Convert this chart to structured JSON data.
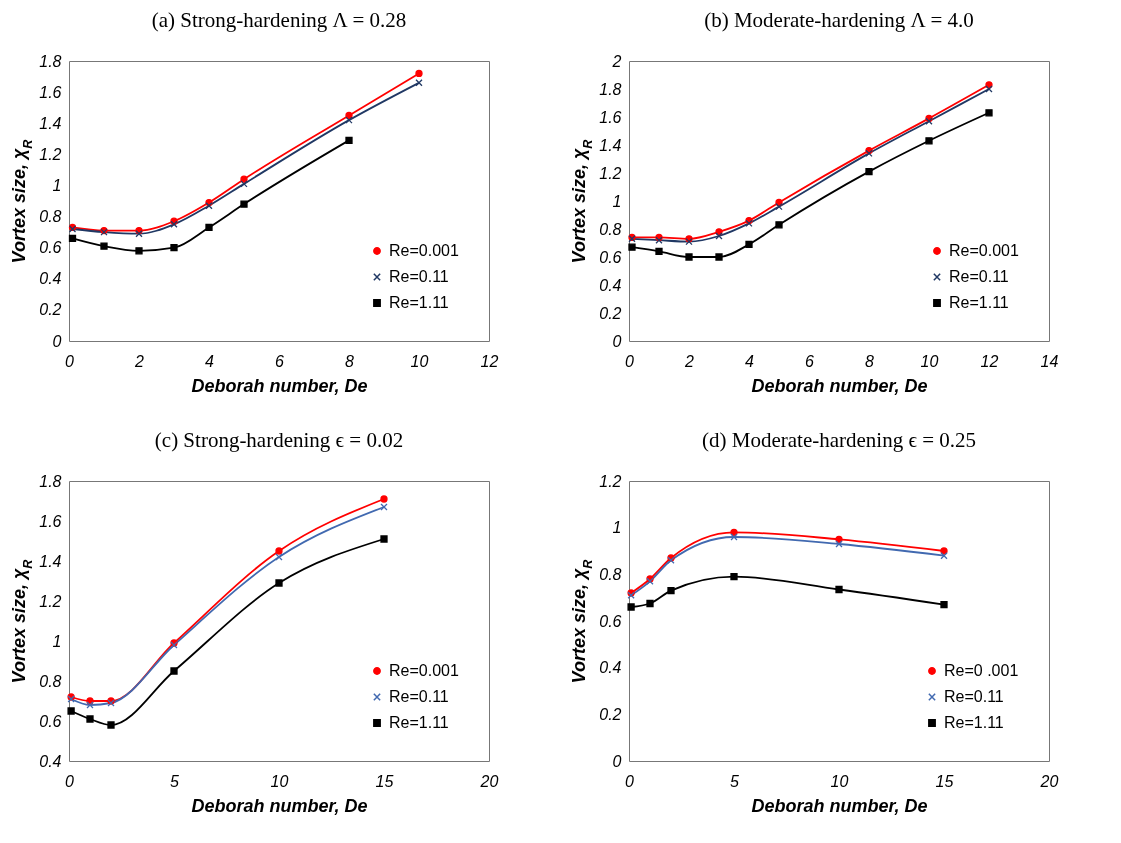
{
  "chart_data": [
    {
      "type": "line",
      "title": "(a) Strong-hardening Λ = 0.28",
      "xlabel": "Deborah number, De",
      "ylabel": "Vortex size, χ$_{R}$",
      "xlim": [
        0,
        12
      ],
      "xticks": [
        0,
        2,
        4,
        6,
        8,
        10,
        12
      ],
      "ylim": [
        0,
        1.8
      ],
      "yticks": [
        0,
        0.2,
        0.4,
        0.6,
        0.8,
        1,
        1.2,
        1.4,
        1.6,
        1.8
      ],
      "grid": false,
      "legend": "bottom right",
      "series": [
        {
          "name": "Re=0.001",
          "color": "#ff0000",
          "marker": "circle",
          "x": [
            0.1,
            1,
            2,
            3,
            4,
            5,
            8,
            10
          ],
          "values": [
            0.73,
            0.71,
            0.71,
            0.77,
            0.89,
            1.04,
            1.45,
            1.72
          ]
        },
        {
          "name": "Re=0.11",
          "color": "#203864",
          "marker": "cross",
          "x": [
            0.1,
            1,
            2,
            3,
            4,
            5,
            8,
            10
          ],
          "values": [
            0.72,
            0.7,
            0.69,
            0.75,
            0.87,
            1.01,
            1.42,
            1.66
          ]
        },
        {
          "name": "Re=1.11",
          "color": "#000000",
          "marker": "square",
          "x": [
            0.1,
            1,
            2,
            3,
            4,
            5,
            8
          ],
          "values": [
            0.66,
            0.61,
            0.58,
            0.6,
            0.73,
            0.88,
            1.29
          ]
        }
      ]
    },
    {
      "type": "line",
      "title": "(b) Moderate-hardening Λ = 4.0",
      "xlabel": "Deborah number, De",
      "ylabel": "Vortex size, χ$_{R}$",
      "xlim": [
        0,
        14
      ],
      "xticks": [
        0,
        2,
        4,
        6,
        8,
        10,
        12,
        14
      ],
      "ylim": [
        0,
        2
      ],
      "yticks": [
        0,
        0.2,
        0.4,
        0.6,
        0.8,
        1,
        1.2,
        1.4,
        1.6,
        1.8,
        2
      ],
      "grid": false,
      "legend": "bottom right",
      "series": [
        {
          "name": "Re=0.001",
          "color": "#ff0000",
          "marker": "circle",
          "x": [
            0.1,
            1,
            2,
            3,
            4,
            5,
            8,
            10,
            12
          ],
          "values": [
            0.74,
            0.74,
            0.73,
            0.78,
            0.86,
            0.99,
            1.36,
            1.59,
            1.83
          ]
        },
        {
          "name": "Re=0.11",
          "color": "#203864",
          "marker": "cross",
          "x": [
            0.1,
            1,
            2,
            3,
            4,
            5,
            8,
            10,
            12
          ],
          "values": [
            0.73,
            0.72,
            0.71,
            0.75,
            0.84,
            0.96,
            1.34,
            1.57,
            1.8
          ]
        },
        {
          "name": "Re=1.11",
          "color": "#000000",
          "marker": "square",
          "x": [
            0.1,
            1,
            2,
            3,
            4,
            5,
            8,
            10,
            12
          ],
          "values": [
            0.67,
            0.64,
            0.6,
            0.6,
            0.69,
            0.83,
            1.21,
            1.43,
            1.63
          ]
        }
      ]
    },
    {
      "type": "line",
      "title": "(c) Strong-hardening ϵ = 0.02",
      "xlabel": "Deborah number, De",
      "ylabel": "Vortex size, χ$_{R}$",
      "xlim": [
        0,
        20
      ],
      "xticks": [
        0,
        5,
        10,
        15,
        20
      ],
      "ylim": [
        0.4,
        1.8
      ],
      "yticks": [
        0.4,
        0.6,
        0.8,
        1,
        1.2,
        1.4,
        1.6,
        1.8
      ],
      "grid": false,
      "legend": "bottom right",
      "series": [
        {
          "name": "Re=0.001",
          "color": "#ff0000",
          "marker": "circle",
          "x": [
            0.1,
            1,
            2,
            5,
            10,
            15
          ],
          "values": [
            0.72,
            0.7,
            0.7,
            0.99,
            1.45,
            1.71
          ]
        },
        {
          "name": "Re=0.11",
          "color": "#4169b0",
          "marker": "cross",
          "x": [
            0.1,
            1,
            2,
            5,
            10,
            15
          ],
          "values": [
            0.71,
            0.68,
            0.69,
            0.98,
            1.42,
            1.67
          ]
        },
        {
          "name": "Re=1.11",
          "color": "#000000",
          "marker": "square",
          "x": [
            0.1,
            1,
            2,
            5,
            10,
            15
          ],
          "values": [
            0.65,
            0.61,
            0.58,
            0.85,
            1.29,
            1.51
          ]
        }
      ]
    },
    {
      "type": "line",
      "title": "(d) Moderate-hardening ϵ = 0.25",
      "xlabel": "Deborah number, De",
      "ylabel": "Vortex size, χ$_{R}$",
      "xlim": [
        0,
        20
      ],
      "xticks": [
        0,
        5,
        10,
        15,
        20
      ],
      "ylim": [
        0,
        1.2
      ],
      "yticks": [
        0,
        0.2,
        0.4,
        0.6,
        0.8,
        1,
        1.2
      ],
      "grid": false,
      "legend": "bottom right",
      "series": [
        {
          "name": "Re=0 .001",
          "color": "#ff0000",
          "marker": "circle",
          "x": [
            0.1,
            1,
            2,
            5,
            10,
            15
          ],
          "values": [
            0.72,
            0.78,
            0.87,
            0.98,
            0.95,
            0.9
          ]
        },
        {
          "name": "Re=0.11",
          "color": "#4169b0",
          "marker": "cross",
          "x": [
            0.1,
            1,
            2,
            5,
            10,
            15
          ],
          "values": [
            0.71,
            0.77,
            0.86,
            0.96,
            0.93,
            0.88
          ]
        },
        {
          "name": "Re=1.11",
          "color": "#000000",
          "marker": "square",
          "x": [
            0.1,
            1,
            2,
            5,
            10,
            15
          ],
          "values": [
            0.66,
            0.675,
            0.73,
            0.79,
            0.735,
            0.67
          ]
        }
      ]
    }
  ]
}
